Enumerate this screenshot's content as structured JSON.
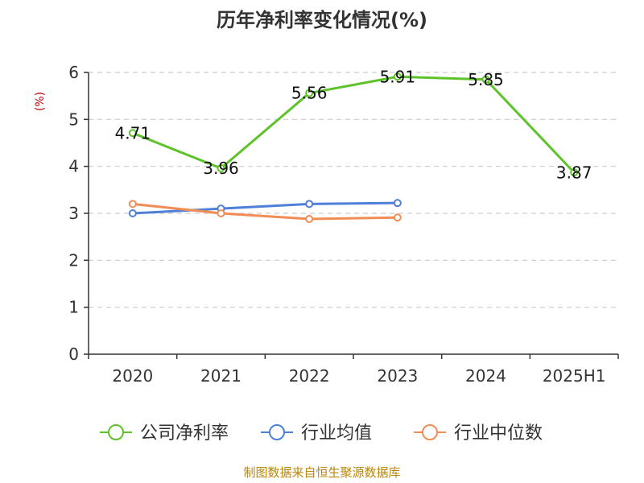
{
  "chart_data": {
    "type": "line",
    "title": "历年净利率变化情况(%)",
    "ylabel": "(%)",
    "categories": [
      "2020",
      "2021",
      "2022",
      "2023",
      "2024",
      "2025H1"
    ],
    "y_ticks": [
      "0",
      "1",
      "2",
      "3",
      "4",
      "5",
      "6"
    ],
    "ylim": [
      0,
      6
    ],
    "grid": true,
    "legend_position": "bottom",
    "series": [
      {
        "name": "公司净利率",
        "color": "#5ec229",
        "values": [
          4.71,
          3.96,
          5.56,
          5.91,
          5.85,
          3.87
        ],
        "labels": [
          "4.71",
          "3.96",
          "5.56",
          "5.91",
          "5.85",
          "3.87"
        ]
      },
      {
        "name": "行业均值",
        "color": "#4f7fd8",
        "values": [
          3.0,
          3.1,
          3.2,
          3.22,
          null,
          null
        ]
      },
      {
        "name": "行业中位数",
        "color": "#f28c55",
        "values": [
          3.2,
          3.0,
          2.88,
          2.91,
          null,
          null
        ]
      }
    ]
  },
  "footer": {
    "source": "制图数据来自恒生聚源数据库"
  }
}
